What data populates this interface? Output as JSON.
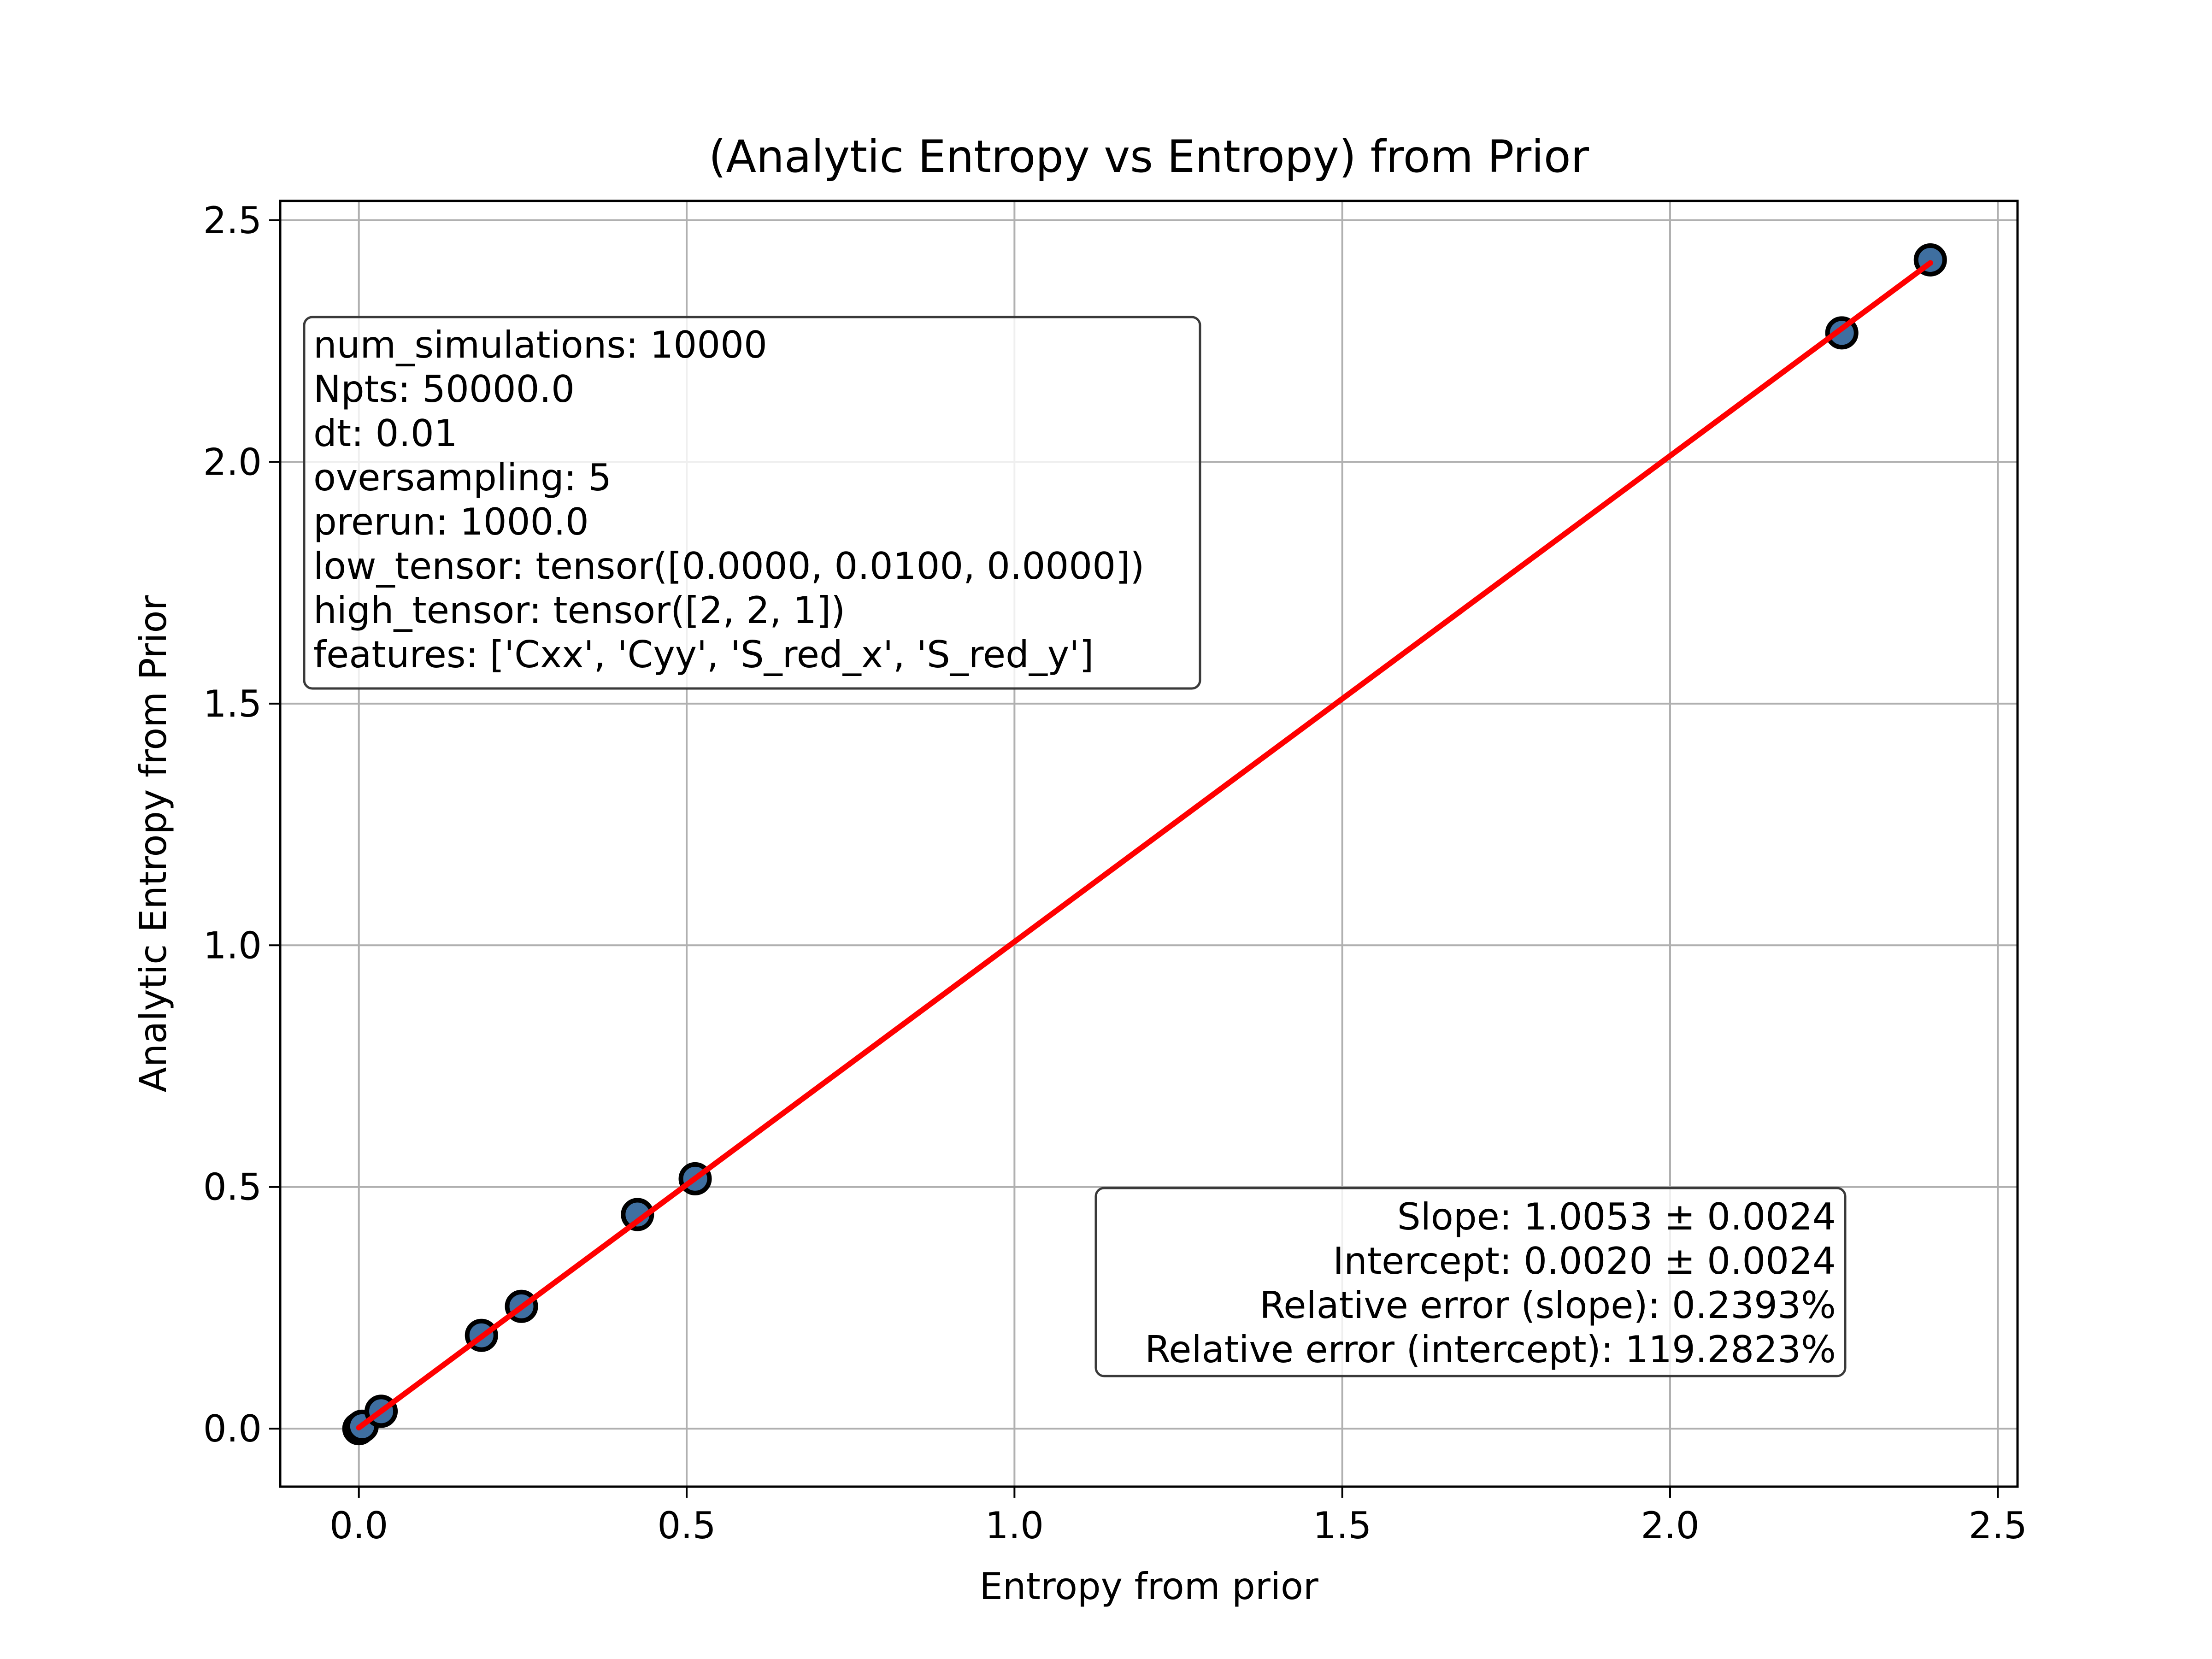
{
  "chart_data": {
    "type": "scatter",
    "title": "(Analytic Entropy vs Entropy) from Prior",
    "xlabel": "Entropy from prior",
    "ylabel": "Analytic Entropy from Prior",
    "xlim": [
      -0.12,
      2.53
    ],
    "ylim": [
      -0.12,
      2.54
    ],
    "xticks": [
      0.0,
      0.5,
      1.0,
      1.5,
      2.0,
      2.5
    ],
    "yticks": [
      0.0,
      0.5,
      1.0,
      1.5,
      2.0,
      2.5
    ],
    "xtick_labels": [
      "0.0",
      "0.5",
      "1.0",
      "1.5",
      "2.0",
      "2.5"
    ],
    "ytick_labels": [
      "0.0",
      "0.5",
      "1.0",
      "1.5",
      "2.0",
      "2.5"
    ],
    "grid": true,
    "points": [
      {
        "x": 0.0,
        "y": 0.0
      },
      {
        "x": 0.005,
        "y": 0.005
      },
      {
        "x": 0.034,
        "y": 0.036
      },
      {
        "x": 0.187,
        "y": 0.193
      },
      {
        "x": 0.248,
        "y": 0.253
      },
      {
        "x": 0.425,
        "y": 0.443
      },
      {
        "x": 0.513,
        "y": 0.517
      },
      {
        "x": 2.262,
        "y": 2.267
      },
      {
        "x": 2.397,
        "y": 2.418
      }
    ],
    "fit_line": {
      "slope": 1.0053,
      "intercept": 0.002,
      "x_range": [
        0.0,
        2.397
      ]
    },
    "colors": {
      "marker_fill": "#3f6fa0",
      "marker_edge": "#000000",
      "fit_line": "#ff0000",
      "grid": "#b0b0b0"
    },
    "params_box": {
      "placement": "upper-left",
      "lines": [
        "num_simulations: 10000",
        "Npts: 50000.0",
        "dt: 0.01",
        "oversampling: 5",
        "prerun: 1000.0",
        "low_tensor: tensor([0.0000, 0.0100, 0.0000])",
        "high_tensor: tensor([2, 2, 1])",
        "features: ['Cxx', 'Cyy', 'S_red_x', 'S_red_y']"
      ]
    },
    "stats_box": {
      "placement": "lower-right",
      "lines": [
        "Slope: 1.0053 ± 0.0024",
        "Intercept: 0.0020 ± 0.0024",
        "Relative error (slope): 0.2393%",
        "Relative error (intercept): 119.2823%"
      ]
    }
  }
}
